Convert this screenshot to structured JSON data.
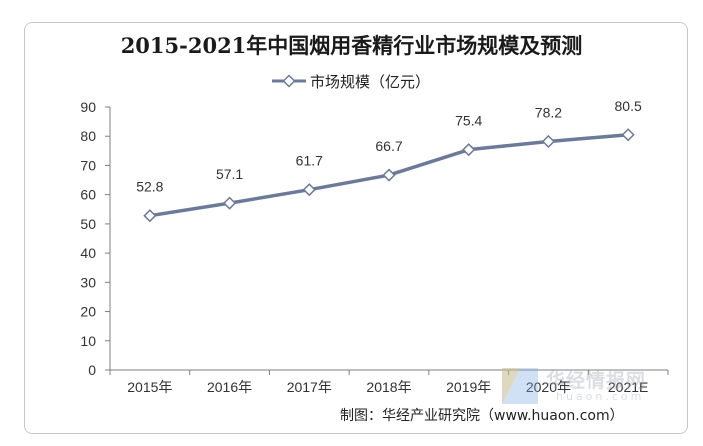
{
  "chart_data": {
    "type": "line",
    "title": "2015-2021年中国烟用香精行业市场规模及预测",
    "categories": [
      "2015年",
      "2016年",
      "2017年",
      "2018年",
      "2019年",
      "2020年",
      "2021E"
    ],
    "series": [
      {
        "name": "市场规模（亿元）",
        "values": [
          52.8,
          57.1,
          61.7,
          66.7,
          75.4,
          78.2,
          80.5
        ]
      }
    ],
    "ylim": [
      0,
      90
    ],
    "yticks": [
      0,
      10,
      20,
      30,
      40,
      50,
      60,
      70,
      80,
      90
    ],
    "xlabel": "",
    "ylabel": "",
    "legend_position": "top-center",
    "grid": false,
    "line_color": "#6b7a99",
    "marker": "diamond-hollow"
  },
  "source": "制图：华经产业研究院（www.huaon.com）",
  "watermark": {
    "main": "华经情报网",
    "sub": "huaon.com"
  }
}
